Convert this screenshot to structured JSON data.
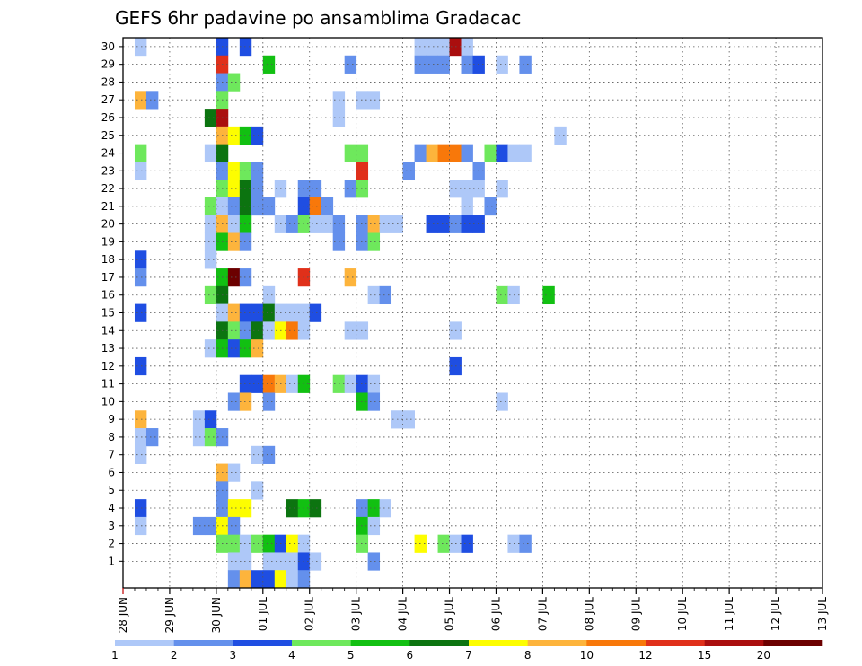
{
  "chart_data": {
    "type": "heatmap",
    "title": "GEFS 6hr padavine po ansamblima Gradacac",
    "xlabel": "",
    "ylabel": "",
    "x_tick_labels": [
      "28 JUN",
      "29 JUN",
      "30 JUN",
      "01 JUL",
      "02 JUL",
      "03 JUL",
      "04 JUL",
      "05 JUL",
      "06 JUL",
      "07 JUL",
      "08 JUL",
      "09 JUL",
      "10 JUL",
      "11 JUL",
      "12 JUL",
      "13 JUL"
    ],
    "y_tick_labels": [
      "1",
      "2",
      "3",
      "4",
      "5",
      "6",
      "7",
      "8",
      "9",
      "10",
      "11",
      "12",
      "13",
      "14",
      "15",
      "16",
      "17",
      "18",
      "19",
      "20",
      "21",
      "22",
      "23",
      "24",
      "25",
      "26",
      "27",
      "28",
      "29",
      "30"
    ],
    "x_unit": "6-hour steps from 28 JUN 00Z",
    "grid": true,
    "colorbar": {
      "labels": [
        "1",
        "2",
        "3",
        "4",
        "5",
        "6",
        "7",
        "8",
        "10",
        "12",
        "15",
        "20"
      ],
      "colors": [
        "#aec8f8",
        "#6490ec",
        "#1f4ee2",
        "#6ee85c",
        "#12c012",
        "#0c7410",
        "#fdfd00",
        "#fdb43c",
        "#f8780a",
        "#e0301a",
        "#aa0e0e",
        "#6c0000"
      ]
    },
    "series": [
      {
        "member": 30,
        "cells": [
          [
            1,
            1
          ],
          [
            8,
            3
          ],
          [
            10,
            3
          ],
          [
            25,
            1
          ],
          [
            26,
            1
          ],
          [
            27,
            1
          ],
          [
            28,
            11
          ],
          [
            29,
            1
          ]
        ]
      },
      {
        "member": 29,
        "cells": [
          [
            8,
            10
          ],
          [
            12,
            5
          ],
          [
            19,
            2
          ],
          [
            27,
            2
          ],
          [
            32,
            1
          ],
          [
            34,
            2
          ],
          [
            25,
            2
          ],
          [
            26,
            2
          ],
          [
            29,
            2
          ],
          [
            30,
            3
          ]
        ]
      },
      {
        "member": 28,
        "cells": [
          [
            8,
            2
          ],
          [
            9,
            4
          ]
        ]
      },
      {
        "member": 27,
        "cells": [
          [
            1,
            8
          ],
          [
            2,
            2
          ],
          [
            8,
            4
          ],
          [
            18,
            1
          ],
          [
            20,
            1
          ],
          [
            21,
            1
          ]
        ]
      },
      {
        "member": 26,
        "cells": [
          [
            7,
            6
          ],
          [
            8,
            11
          ],
          [
            18,
            1
          ]
        ]
      },
      {
        "member": 25,
        "cells": [
          [
            8,
            8
          ],
          [
            9,
            7
          ],
          [
            10,
            5
          ],
          [
            11,
            3
          ],
          [
            37,
            1
          ]
        ]
      },
      {
        "member": 24,
        "cells": [
          [
            1,
            4
          ],
          [
            7,
            1
          ],
          [
            8,
            6
          ],
          [
            19,
            4
          ],
          [
            20,
            4
          ],
          [
            25,
            2
          ],
          [
            26,
            8
          ],
          [
            27,
            9
          ],
          [
            28,
            9
          ],
          [
            29,
            2
          ],
          [
            31,
            4
          ],
          [
            32,
            3
          ],
          [
            33,
            1
          ],
          [
            34,
            1
          ]
        ]
      },
      {
        "member": 23,
        "cells": [
          [
            1,
            1
          ],
          [
            8,
            2
          ],
          [
            9,
            7
          ],
          [
            10,
            4
          ],
          [
            11,
            2
          ],
          [
            20,
            10
          ],
          [
            24,
            2
          ],
          [
            30,
            2
          ]
        ]
      },
      {
        "member": 22,
        "cells": [
          [
            8,
            4
          ],
          [
            9,
            7
          ],
          [
            10,
            6
          ],
          [
            11,
            2
          ],
          [
            13,
            1
          ],
          [
            15,
            2
          ],
          [
            16,
            2
          ],
          [
            19,
            2
          ],
          [
            20,
            4
          ],
          [
            28,
            1
          ],
          [
            29,
            1
          ],
          [
            30,
            1
          ],
          [
            32,
            1
          ]
        ]
      },
      {
        "member": 21,
        "cells": [
          [
            7,
            4
          ],
          [
            8,
            1
          ],
          [
            9,
            2
          ],
          [
            10,
            6
          ],
          [
            11,
            2
          ],
          [
            12,
            2
          ],
          [
            15,
            3
          ],
          [
            16,
            9
          ],
          [
            17,
            2
          ],
          [
            29,
            1
          ],
          [
            31,
            2
          ]
        ]
      },
      {
        "member": 20,
        "cells": [
          [
            7,
            1
          ],
          [
            8,
            8
          ],
          [
            9,
            1
          ],
          [
            10,
            5
          ],
          [
            13,
            1
          ],
          [
            14,
            2
          ],
          [
            15,
            4
          ],
          [
            16,
            1
          ],
          [
            17,
            1
          ],
          [
            18,
            2
          ],
          [
            20,
            2
          ],
          [
            21,
            8
          ],
          [
            22,
            1
          ],
          [
            23,
            1
          ],
          [
            26,
            3
          ],
          [
            27,
            3
          ],
          [
            28,
            2
          ],
          [
            29,
            3
          ],
          [
            30,
            3
          ]
        ]
      },
      {
        "member": 19,
        "cells": [
          [
            7,
            1
          ],
          [
            8,
            5
          ],
          [
            9,
            8
          ],
          [
            10,
            2
          ],
          [
            18,
            2
          ],
          [
            20,
            2
          ],
          [
            21,
            4
          ]
        ]
      },
      {
        "member": 18,
        "cells": [
          [
            1,
            3
          ],
          [
            7,
            1
          ]
        ]
      },
      {
        "member": 17,
        "cells": [
          [
            1,
            2
          ],
          [
            8,
            5
          ],
          [
            9,
            12
          ],
          [
            10,
            2
          ],
          [
            15,
            10
          ],
          [
            19,
            8
          ]
        ]
      },
      {
        "member": 16,
        "cells": [
          [
            7,
            4
          ],
          [
            8,
            6
          ],
          [
            12,
            1
          ],
          [
            21,
            1
          ],
          [
            22,
            2
          ],
          [
            32,
            4
          ],
          [
            33,
            1
          ],
          [
            36,
            5
          ]
        ]
      },
      {
        "member": 15,
        "cells": [
          [
            1,
            3
          ],
          [
            8,
            1
          ],
          [
            9,
            8
          ],
          [
            10,
            3
          ],
          [
            11,
            3
          ],
          [
            12,
            6
          ],
          [
            13,
            1
          ],
          [
            14,
            1
          ],
          [
            15,
            1
          ],
          [
            16,
            3
          ]
        ]
      },
      {
        "member": 14,
        "cells": [
          [
            8,
            6
          ],
          [
            9,
            4
          ],
          [
            10,
            2
          ],
          [
            11,
            6
          ],
          [
            12,
            1
          ],
          [
            13,
            7
          ],
          [
            14,
            9
          ],
          [
            15,
            1
          ],
          [
            19,
            1
          ],
          [
            20,
            1
          ],
          [
            28,
            1
          ]
        ]
      },
      {
        "member": 13,
        "cells": [
          [
            7,
            1
          ],
          [
            8,
            5
          ],
          [
            9,
            3
          ],
          [
            10,
            5
          ],
          [
            11,
            8
          ]
        ]
      },
      {
        "member": 12,
        "cells": [
          [
            1,
            3
          ],
          [
            28,
            3
          ]
        ]
      },
      {
        "member": 11,
        "cells": [
          [
            10,
            3
          ],
          [
            11,
            3
          ],
          [
            12,
            9
          ],
          [
            13,
            8
          ],
          [
            14,
            1
          ],
          [
            15,
            5
          ],
          [
            18,
            4
          ],
          [
            19,
            1
          ],
          [
            20,
            3
          ],
          [
            21,
            1
          ]
        ]
      },
      {
        "member": 10,
        "cells": [
          [
            9,
            2
          ],
          [
            10,
            8
          ],
          [
            12,
            2
          ],
          [
            20,
            5
          ],
          [
            21,
            2
          ],
          [
            32,
            1
          ]
        ]
      },
      {
        "member": 9,
        "cells": [
          [
            1,
            8
          ],
          [
            6,
            1
          ],
          [
            7,
            3
          ],
          [
            23,
            1
          ],
          [
            24,
            1
          ]
        ]
      },
      {
        "member": 8,
        "cells": [
          [
            1,
            1
          ],
          [
            2,
            2
          ],
          [
            6,
            1
          ],
          [
            7,
            4
          ],
          [
            8,
            2
          ]
        ]
      },
      {
        "member": 7,
        "cells": [
          [
            1,
            1
          ],
          [
            11,
            1
          ],
          [
            12,
            2
          ]
        ]
      },
      {
        "member": 6,
        "cells": [
          [
            8,
            8
          ],
          [
            9,
            1
          ]
        ]
      },
      {
        "member": 5,
        "cells": [
          [
            8,
            2
          ],
          [
            11,
            1
          ]
        ]
      },
      {
        "member": 4,
        "cells": [
          [
            1,
            3
          ],
          [
            8,
            2
          ],
          [
            9,
            7
          ],
          [
            10,
            7
          ],
          [
            14,
            6
          ],
          [
            15,
            5
          ],
          [
            16,
            6
          ],
          [
            20,
            2
          ],
          [
            21,
            5
          ],
          [
            22,
            1
          ]
        ]
      },
      {
        "member": 3,
        "cells": [
          [
            1,
            1
          ],
          [
            6,
            2
          ],
          [
            7,
            2
          ],
          [
            8,
            7
          ],
          [
            9,
            2
          ],
          [
            20,
            5
          ],
          [
            21,
            1
          ]
        ]
      },
      {
        "member": 2,
        "cells": [
          [
            8,
            4
          ],
          [
            9,
            4
          ],
          [
            10,
            1
          ],
          [
            11,
            4
          ],
          [
            12,
            5
          ],
          [
            13,
            3
          ],
          [
            14,
            7
          ],
          [
            15,
            1
          ],
          [
            20,
            4
          ],
          [
            25,
            7
          ],
          [
            27,
            4
          ],
          [
            28,
            1
          ],
          [
            29,
            3
          ],
          [
            33,
            1
          ],
          [
            34,
            2
          ]
        ]
      },
      {
        "member": 1,
        "cells": [
          [
            9,
            1
          ],
          [
            10,
            1
          ],
          [
            12,
            1
          ],
          [
            13,
            1
          ],
          [
            14,
            1
          ],
          [
            15,
            3
          ],
          [
            16,
            1
          ],
          [
            21,
            2
          ]
        ]
      },
      {
        "member": 0,
        "cells": [
          [
            9,
            2
          ],
          [
            10,
            8
          ],
          [
            11,
            3
          ],
          [
            12,
            3
          ],
          [
            13,
            7
          ],
          [
            14,
            1
          ],
          [
            15,
            2
          ]
        ]
      }
    ]
  }
}
